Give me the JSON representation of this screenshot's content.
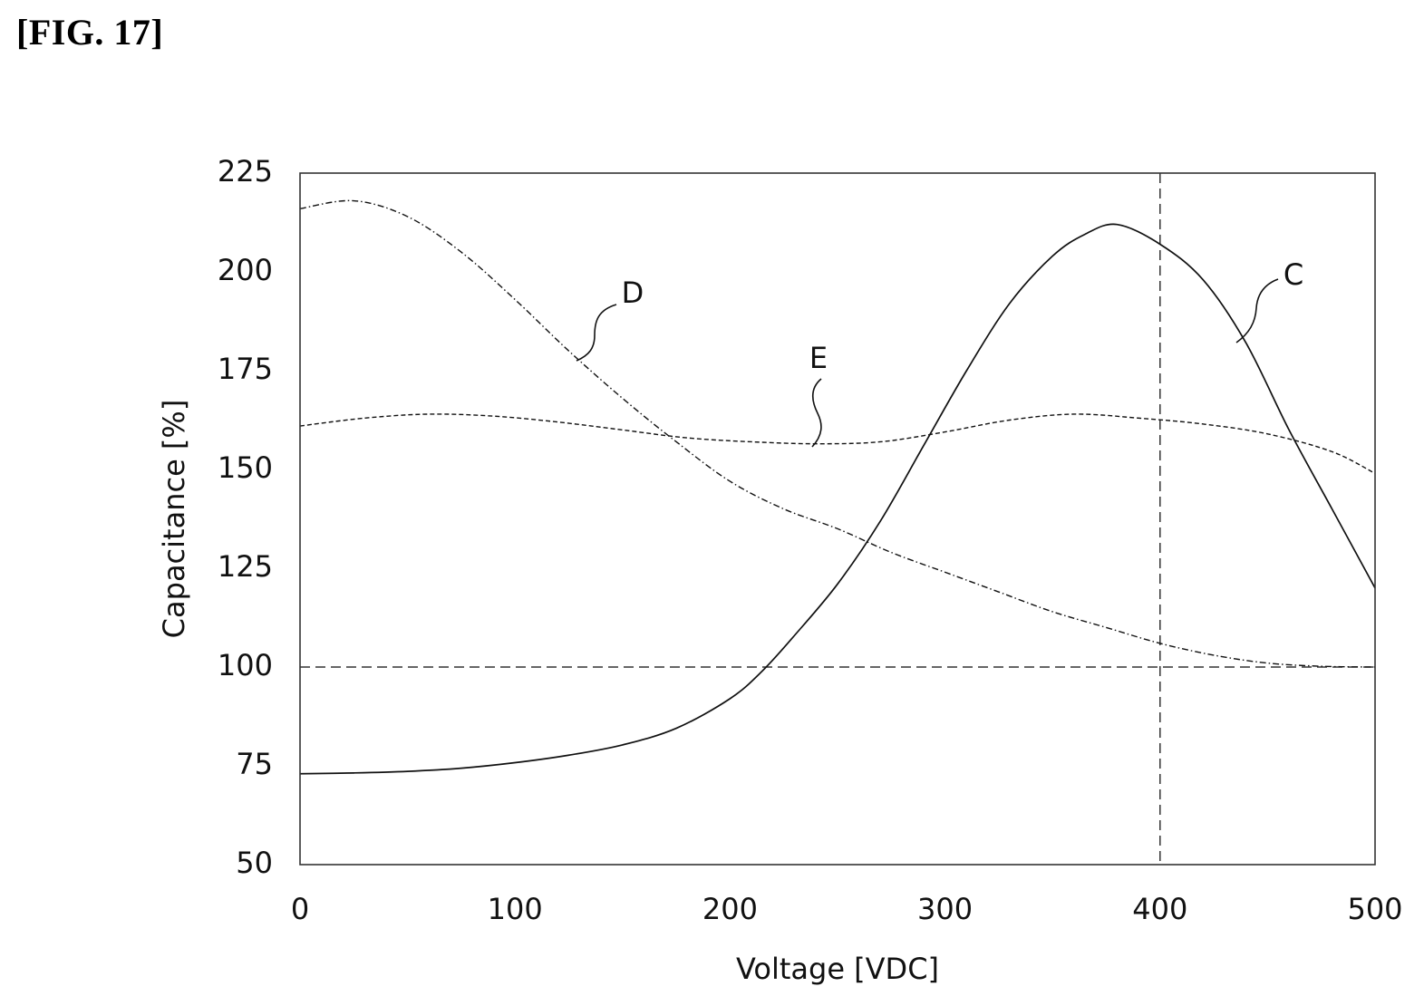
{
  "figure": {
    "label": "[FIG. 17]"
  },
  "chart_data": {
    "type": "line",
    "title": "",
    "xlabel": "Voltage [VDC]",
    "ylabel": "Capacitance [%]",
    "xlim": [
      0,
      500
    ],
    "ylim": [
      50,
      225
    ],
    "xticks": [
      0,
      100,
      200,
      300,
      400,
      500
    ],
    "yticks": [
      50,
      75,
      100,
      125,
      150,
      175,
      200,
      225
    ],
    "grid": false,
    "reference_lines": [
      {
        "orientation": "horizontal",
        "value": 100
      },
      {
        "orientation": "vertical",
        "value": 400
      }
    ],
    "series": [
      {
        "name": "C",
        "line_style": "solid",
        "x": [
          0,
          25,
          50,
          75,
          100,
          125,
          150,
          175,
          200,
          215,
          230,
          250,
          270,
          290,
          310,
          330,
          350,
          365,
          380,
          400,
          420,
          440,
          460,
          480,
          500
        ],
        "y": [
          73,
          73.2,
          73.6,
          74.4,
          75.8,
          77.7,
          80.3,
          84.5,
          92,
          99,
          108,
          121,
          137,
          156,
          175,
          192,
          204,
          209.5,
          212,
          207,
          198,
          182,
          160,
          140,
          120
        ]
      },
      {
        "name": "D",
        "line_style": "dash-dot",
        "x": [
          0,
          25,
          50,
          75,
          100,
          125,
          150,
          175,
          200,
          225,
          250,
          275,
          300,
          325,
          350,
          375,
          400,
          425,
          450,
          475,
          500
        ],
        "y": [
          216,
          218,
          214,
          205,
          193,
          180,
          168,
          157,
          147,
          140,
          135,
          129,
          124,
          119,
          114,
          110,
          106,
          103,
          101,
          100.2,
          100
        ]
      },
      {
        "name": "E",
        "line_style": "dashed",
        "x": [
          0,
          30,
          60,
          90,
          120,
          150,
          180,
          210,
          240,
          270,
          300,
          330,
          360,
          390,
          420,
          450,
          480,
          500
        ],
        "y": [
          161,
          163,
          164,
          163.5,
          162,
          160,
          158,
          157,
          156.5,
          157,
          159.5,
          162.5,
          164,
          163,
          161.5,
          159,
          154.5,
          149
        ]
      }
    ],
    "annotations": [
      {
        "text": "C",
        "series": "C"
      },
      {
        "text": "D",
        "series": "D"
      },
      {
        "text": "E",
        "series": "E"
      }
    ]
  }
}
